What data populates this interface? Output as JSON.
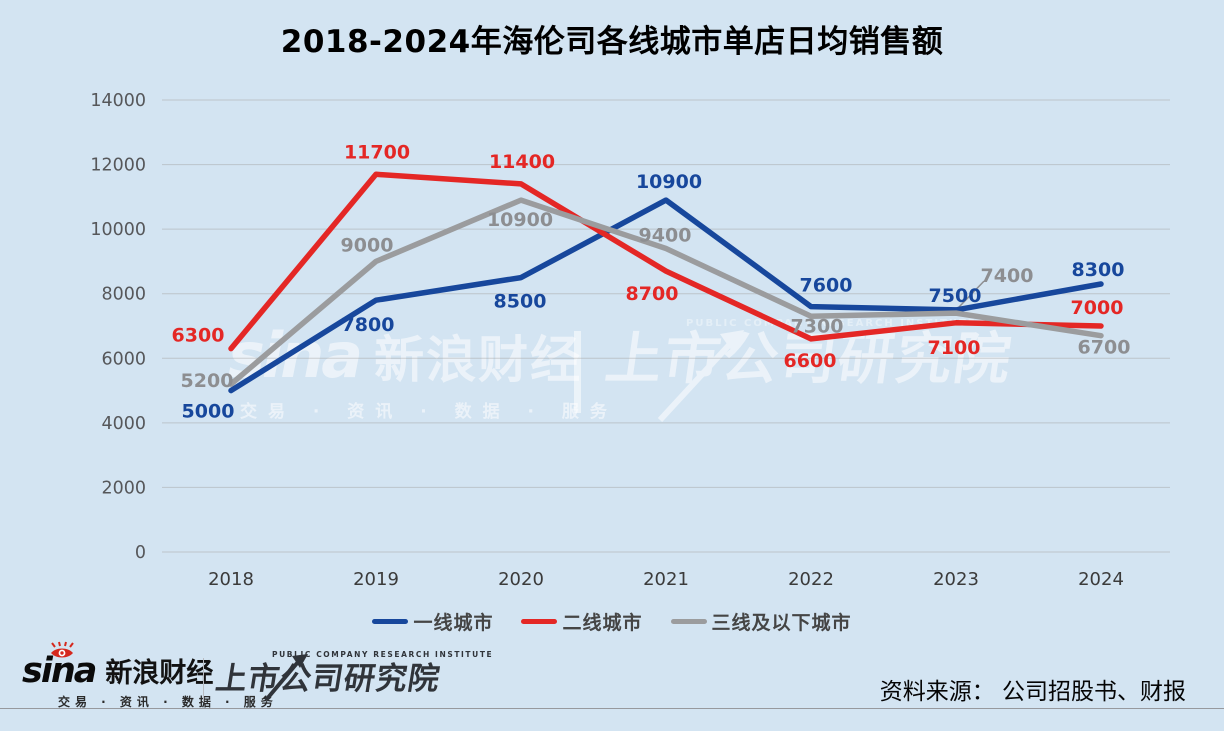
{
  "title": "2018-2024年海伦司各线城市单店日均销售额",
  "chart_data": {
    "type": "line",
    "title": "2018-2024年海伦司各线城市单店日均销售额",
    "categories": [
      "2018",
      "2019",
      "2020",
      "2021",
      "2022",
      "2023",
      "2024"
    ],
    "series": [
      {
        "name": "一线城市",
        "color": "#17479c",
        "values": [
          5000,
          7800,
          8500,
          10900,
          7600,
          7500,
          8300
        ],
        "label_offsets": [
          [
            -23,
            27
          ],
          [
            -8,
            31
          ],
          [
            -1,
            30
          ],
          [
            3,
            -12
          ],
          [
            15,
            -15
          ],
          [
            -1,
            -8
          ],
          [
            -3,
            -8
          ]
        ]
      },
      {
        "name": "二线城市",
        "color": "#e42725",
        "values": [
          6300,
          11700,
          11400,
          8700,
          6600,
          7100,
          7000
        ],
        "label_offsets": [
          [
            -33,
            -7
          ],
          [
            1,
            -16
          ],
          [
            1,
            -16
          ],
          [
            -14,
            29
          ],
          [
            -1,
            28
          ],
          [
            -2,
            31
          ],
          [
            -4,
            -12
          ]
        ]
      },
      {
        "name": "三线及以下城市",
        "color": "#9b9c9e",
        "label_color": "#8d8e91",
        "values": [
          5200,
          9000,
          10900,
          9400,
          7300,
          7400,
          6700
        ],
        "label_offsets": [
          [
            -24,
            3
          ],
          [
            -9,
            -10
          ],
          [
            -1,
            26
          ],
          [
            -1,
            -7
          ],
          [
            6,
            16
          ],
          [
            51,
            -31
          ],
          [
            3,
            18
          ]
        ]
      }
    ],
    "xlabel": "",
    "ylabel": "",
    "ylim": [
      0,
      14000
    ],
    "ytick_step": 2000,
    "grid": true,
    "legend_position": "bottom",
    "callout": {
      "series_index": 2,
      "point_index": 5
    }
  },
  "watermark": {
    "sina_brand": "sina",
    "sina_name": "新浪财经",
    "sina_tagline": "交易 · 资讯 · 数据 · 服务",
    "pcri_en": "PUBLIC COMPANY RESEARCH INSTITUTE",
    "pcri_zh": "上市公司研究院"
  },
  "footer": {
    "sina_brand": "sina",
    "sina_name": "新浪财经",
    "sina_tagline": "交易 · 资讯 · 数据 · 服务",
    "pcri_en": "PUBLIC COMPANY RESEARCH INSTITUTE",
    "pcri_zh": "上市公司研究院",
    "source": "资料来源：  公司招股书、财报"
  }
}
